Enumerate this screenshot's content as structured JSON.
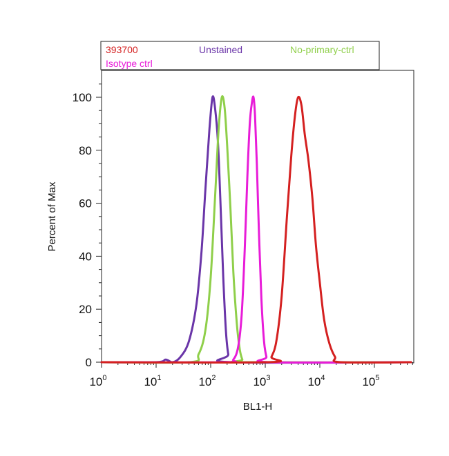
{
  "chart_data": {
    "type": "line",
    "title": "",
    "xlabel": "BL1-H",
    "ylabel": "Percent of Max",
    "x_scale": "log",
    "xlim": [
      1,
      600000
    ],
    "ylim": [
      0,
      110
    ],
    "grid": false,
    "legend_position": "top",
    "x_ticks": [
      {
        "value": 1,
        "base": "10",
        "exp": "0"
      },
      {
        "value": 10,
        "base": "10",
        "exp": "1"
      },
      {
        "value": 100,
        "base": "10",
        "exp": "2"
      },
      {
        "value": 1000,
        "base": "10",
        "exp": "3"
      },
      {
        "value": 10000,
        "base": "10",
        "exp": "4"
      },
      {
        "value": 100000,
        "base": "10",
        "exp": "5"
      }
    ],
    "y_ticks": [
      0,
      20,
      40,
      60,
      80,
      100
    ],
    "legend": [
      {
        "label": "393700",
        "color": "#d42020"
      },
      {
        "label": "Unstained",
        "color": "#6a35a8"
      },
      {
        "label": "No-primary-ctrl",
        "color": "#8fcf4a"
      },
      {
        "label": "Isotype ctrl",
        "color": "#e81cd8"
      }
    ],
    "series": [
      {
        "name": "Unstained",
        "color": "#6a35a8",
        "points": [
          [
            1,
            0
          ],
          [
            10,
            0
          ],
          [
            15,
            1
          ],
          [
            20,
            0
          ],
          [
            28,
            2
          ],
          [
            40,
            8
          ],
          [
            55,
            22
          ],
          [
            68,
            42
          ],
          [
            80,
            65
          ],
          [
            95,
            88
          ],
          [
            108,
            100
          ],
          [
            120,
            96
          ],
          [
            135,
            84
          ],
          [
            150,
            62
          ],
          [
            170,
            32
          ],
          [
            190,
            12
          ],
          [
            210,
            3
          ],
          [
            240,
            0
          ],
          [
            600000,
            0
          ]
        ]
      },
      {
        "name": "No-primary-ctrl",
        "color": "#8fcf4a",
        "points": [
          [
            1,
            0
          ],
          [
            40,
            0
          ],
          [
            60,
            3
          ],
          [
            80,
            12
          ],
          [
            100,
            32
          ],
          [
            120,
            62
          ],
          [
            140,
            88
          ],
          [
            160,
            100
          ],
          [
            180,
            96
          ],
          [
            200,
            82
          ],
          [
            230,
            58
          ],
          [
            260,
            34
          ],
          [
            300,
            15
          ],
          [
            340,
            5
          ],
          [
            380,
            1
          ],
          [
            420,
            0
          ],
          [
            600000,
            0
          ]
        ]
      },
      {
        "name": "Isotype ctrl",
        "color": "#e81cd8",
        "points": [
          [
            1,
            0
          ],
          [
            180,
            0
          ],
          [
            260,
            1
          ],
          [
            320,
            6
          ],
          [
            370,
            18
          ],
          [
            420,
            42
          ],
          [
            470,
            70
          ],
          [
            520,
            90
          ],
          [
            570,
            98
          ],
          [
            610,
            100
          ],
          [
            650,
            93
          ],
          [
            700,
            75
          ],
          [
            770,
            48
          ],
          [
            850,
            24
          ],
          [
            950,
            8
          ],
          [
            1050,
            2
          ],
          [
            1150,
            0
          ],
          [
            600000,
            0
          ]
        ]
      },
      {
        "name": "393700",
        "color": "#d42020",
        "points": [
          [
            1,
            0
          ],
          [
            1100,
            0
          ],
          [
            1300,
            2
          ],
          [
            1600,
            8
          ],
          [
            2000,
            25
          ],
          [
            2500,
            55
          ],
          [
            3000,
            78
          ],
          [
            3500,
            93
          ],
          [
            4000,
            100
          ],
          [
            4600,
            97
          ],
          [
            5300,
            86
          ],
          [
            6200,
            76
          ],
          [
            7300,
            62
          ],
          [
            8500,
            44
          ],
          [
            10000,
            30
          ],
          [
            12000,
            16
          ],
          [
            15000,
            7
          ],
          [
            19000,
            2
          ],
          [
            24000,
            0
          ],
          [
            600000,
            0
          ]
        ]
      }
    ]
  }
}
